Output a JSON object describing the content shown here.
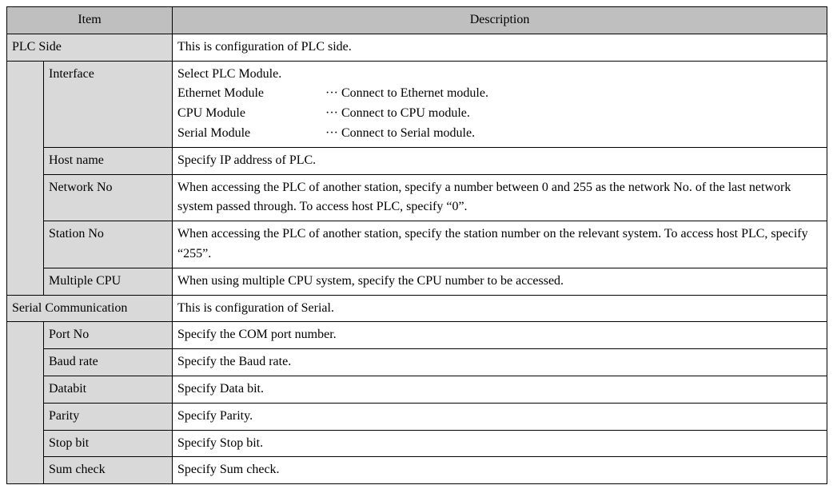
{
  "colors": {
    "header_bg": "#bfbfbf",
    "subhead_bg": "#d9d9d9",
    "border": "#000000",
    "text": "#000000",
    "page_bg": "#ffffff"
  },
  "typography": {
    "family": "Century / Times New Roman (serif)",
    "size_pt": 12,
    "line_height": 1.55
  },
  "header": {
    "item": "Item",
    "description": "Description"
  },
  "plc": {
    "title": "PLC Side",
    "description": "This is configuration of PLC side.",
    "interface": {
      "label": "Interface",
      "intro": "Select PLC Module.",
      "rows": [
        {
          "module": "Ethernet Module",
          "sep": "···",
          "text": "Connect to Ethernet module."
        },
        {
          "module": "CPU Module",
          "sep": "···",
          "text": "Connect to CPU module."
        },
        {
          "module": "Serial Module",
          "sep": "···",
          "text": "Connect to Serial module."
        }
      ]
    },
    "host_name": {
      "label": "Host name",
      "desc": "Specify IP address of PLC."
    },
    "network_no": {
      "label": "Network No",
      "desc": "When accessing the PLC of another station, specify a number between 0 and 255 as the network No. of the last network system passed through. To access host PLC, specify “0”."
    },
    "station_no": {
      "label": "Station No",
      "desc": "When accessing the PLC of another station, specify the station number on the relevant system. To access host PLC, specify “255”."
    },
    "multiple_cpu": {
      "label": "Multiple CPU",
      "desc": "When using multiple CPU system, specify the CPU number to be accessed."
    }
  },
  "serial": {
    "title": "Serial Communication",
    "description": "This is configuration of Serial.",
    "port_no": {
      "label": "Port No",
      "desc": "Specify the COM port number."
    },
    "baud_rate": {
      "label": "Baud rate",
      "desc": "Specify the Baud rate."
    },
    "databit": {
      "label": "Databit",
      "desc": "Specify Data bit."
    },
    "parity": {
      "label": "Parity",
      "desc": "Specify Parity."
    },
    "stop_bit": {
      "label": "Stop bit",
      "desc": "Specify Stop bit."
    },
    "sum_check": {
      "label": "Sum check",
      "desc": "Specify Sum check."
    }
  }
}
